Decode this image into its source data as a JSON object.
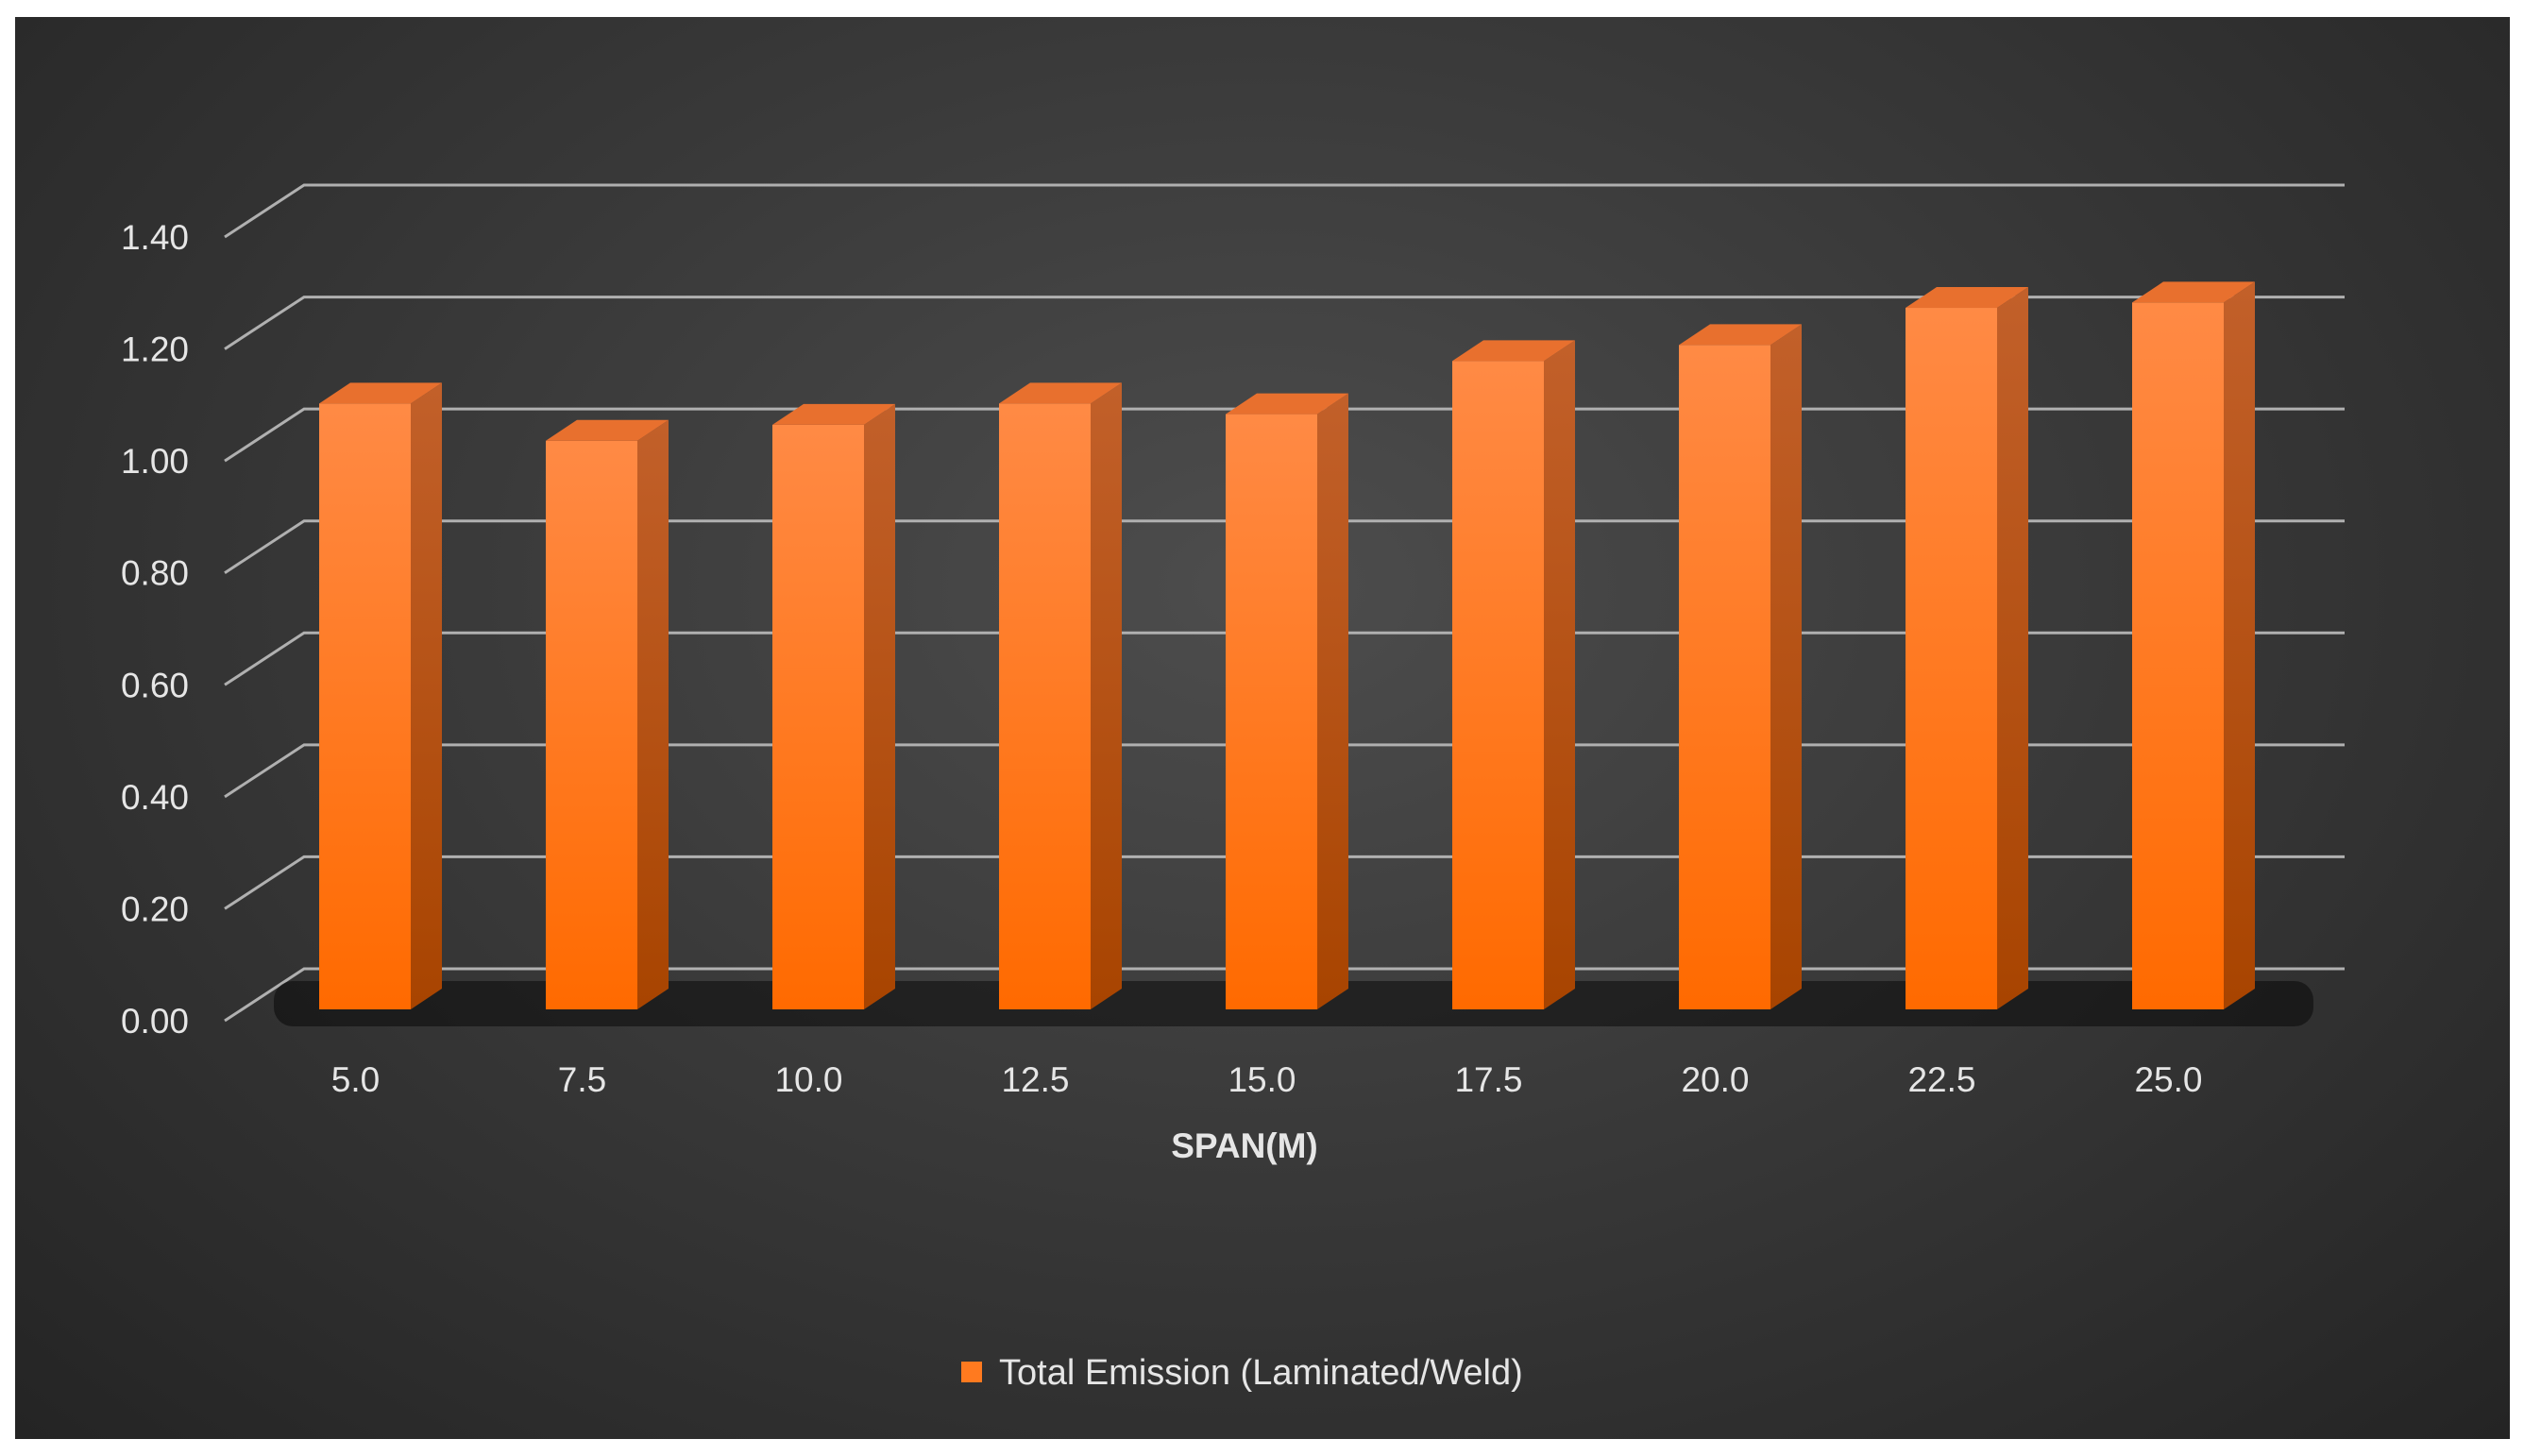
{
  "chart_data": {
    "type": "bar",
    "title": "",
    "xlabel": "SPAN(M)",
    "ylabel": "",
    "categories": [
      "5.0",
      "7.5",
      "10.0",
      "12.5",
      "15.0",
      "17.5",
      "20.0",
      "22.5",
      "25.0"
    ],
    "series": [
      {
        "name": "Total Emission (Laminated/Weld)",
        "values": [
          1.14,
          1.07,
          1.1,
          1.14,
          1.12,
          1.22,
          1.25,
          1.32,
          1.33
        ]
      }
    ],
    "ylim": [
      0,
      1.4
    ],
    "yticks": [
      "0.00",
      "0.20",
      "0.40",
      "0.60",
      "0.80",
      "1.00",
      "1.20",
      "1.40"
    ],
    "grid": true,
    "legend_position": "bottom",
    "colors": {
      "bar_front": "#ff7a1f",
      "bar_side": "#c0541a",
      "bar_top": "#e8702e",
      "grid": "#b0b0b0",
      "text": "#e6e6e6"
    }
  },
  "legend": {
    "label": "Total Emission (Laminated/Weld)"
  }
}
